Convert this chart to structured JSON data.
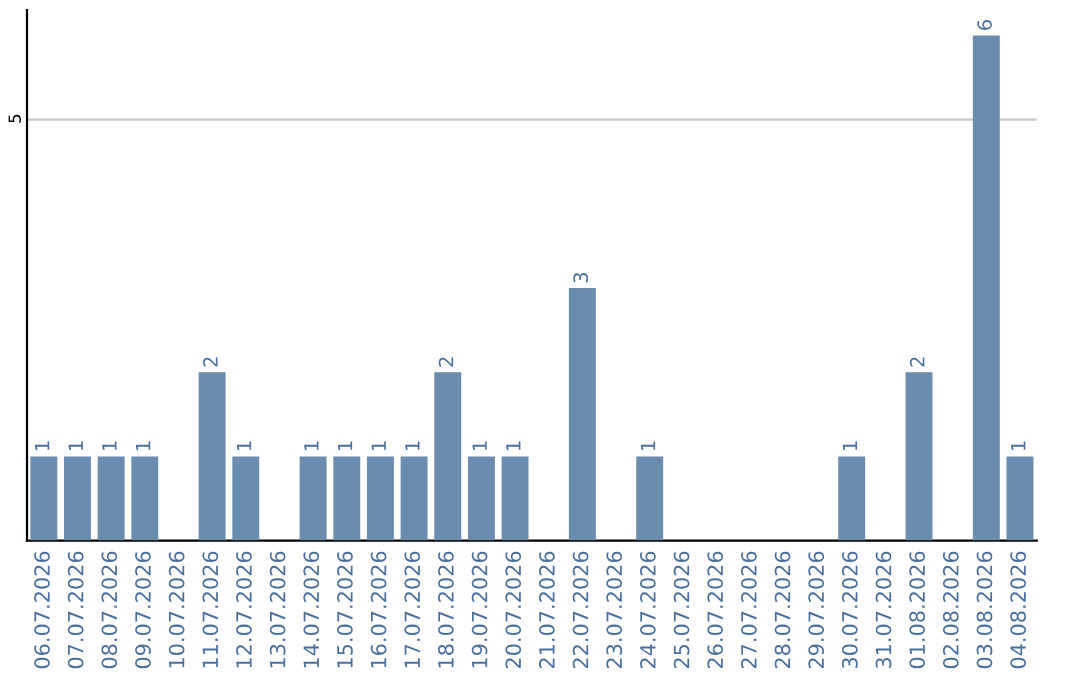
{
  "chart_data": {
    "type": "bar",
    "categories": [
      "06.07.2026",
      "07.07.2026",
      "08.07.2026",
      "09.07.2026",
      "10.07.2026",
      "11.07.2026",
      "12.07.2026",
      "13.07.2026",
      "14.07.2026",
      "15.07.2026",
      "16.07.2026",
      "17.07.2026",
      "18.07.2026",
      "19.07.2026",
      "20.07.2026",
      "21.07.2026",
      "22.07.2026",
      "23.07.2026",
      "24.07.2026",
      "25.07.2026",
      "26.07.2026",
      "27.07.2026",
      "28.07.2026",
      "29.07.2026",
      "30.07.2026",
      "31.07.2026",
      "01.08.2026",
      "02.08.2026",
      "03.08.2026",
      "04.08.2026"
    ],
    "values": [
      1,
      1,
      1,
      1,
      0,
      2,
      1,
      0,
      1,
      1,
      1,
      1,
      2,
      1,
      1,
      0,
      3,
      0,
      1,
      0,
      0,
      0,
      0,
      0,
      1,
      0,
      2,
      0,
      6,
      1
    ],
    "value_labels": [
      "1",
      "1",
      "1",
      "1",
      null,
      "2",
      "1",
      null,
      "1",
      "1",
      "1",
      "1",
      "2",
      "1",
      "1",
      null,
      "3",
      null,
      "1",
      null,
      null,
      null,
      null,
      null,
      "1",
      null,
      "2",
      null,
      "6",
      "1"
    ],
    "color": "#6a8caf",
    "ylim": [
      0,
      6.3
    ],
    "yticks": [
      5
    ],
    "grid": "y"
  }
}
